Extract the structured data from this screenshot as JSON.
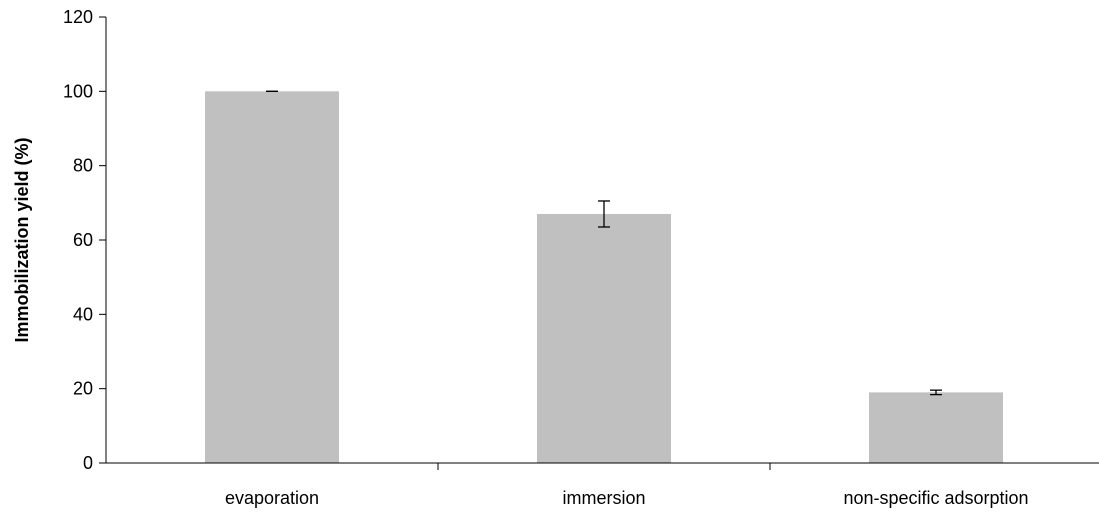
{
  "chart_data": {
    "type": "bar",
    "title": "",
    "xlabel": "",
    "ylabel": "Immobilization yield (%)",
    "categories": [
      "evaporation",
      "immersion",
      "non-specific adsorption"
    ],
    "values": [
      100,
      67,
      19
    ],
    "error": [
      0,
      3.5,
      0.6
    ],
    "ylim": [
      0,
      120
    ],
    "yticks": [
      "0",
      "20",
      "40",
      "60",
      "80",
      "100",
      "120"
    ],
    "grid": false,
    "legend": "none",
    "colors": {
      "bar": "#c0c0c0",
      "axis": "#000000",
      "error_bar": "#000000"
    }
  }
}
